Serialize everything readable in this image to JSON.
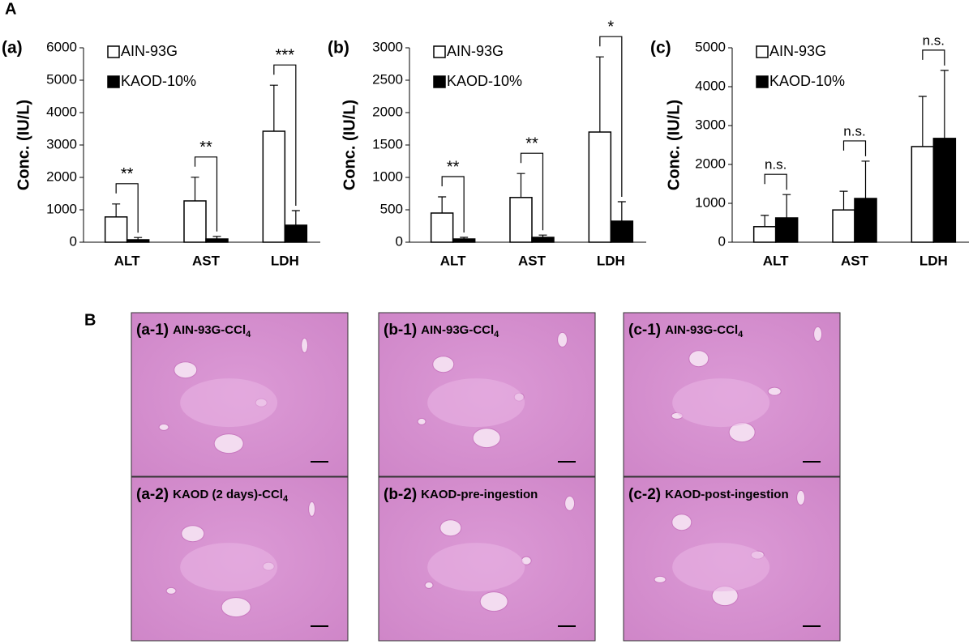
{
  "figure_label_A": "A",
  "figure_label_B": "B",
  "chart_data": [
    {
      "type": "bar",
      "panel": "(a)",
      "ylabel": "Conc. (IU/L)",
      "categories": [
        "ALT",
        "AST",
        "LDH"
      ],
      "series": [
        {
          "name": "AIN-93G",
          "color": "#ffffff",
          "values": [
            780,
            1275,
            3425
          ],
          "errors": [
            400,
            730,
            1420
          ]
        },
        {
          "name": "KAOD-10%",
          "color": "#000000",
          "values": [
            75,
            100,
            525
          ],
          "errors": [
            70,
            80,
            450
          ]
        }
      ],
      "significance": [
        "**",
        "**",
        "***"
      ],
      "edgecolor": "#000000",
      "ylim": [
        0,
        6000
      ],
      "yticks": [
        0,
        1000,
        2000,
        3000,
        4000,
        5000,
        6000
      ]
    },
    {
      "type": "bar",
      "panel": "(b)",
      "ylabel": "Conc. (IU/L)",
      "categories": [
        "ALT",
        "AST",
        "LDH"
      ],
      "series": [
        {
          "name": "AIN-93G",
          "color": "#ffffff",
          "values": [
            450,
            690,
            1700
          ],
          "errors": [
            250,
            370,
            1160
          ]
        },
        {
          "name": "KAOD-10%",
          "color": "#000000",
          "values": [
            50,
            75,
            325
          ],
          "errors": [
            25,
            35,
            300
          ]
        }
      ],
      "significance": [
        "**",
        "**",
        "*"
      ],
      "edgecolor": "#000000",
      "ylim": [
        0,
        3000
      ],
      "yticks": [
        0,
        500,
        1000,
        1500,
        2000,
        2500,
        3000
      ]
    },
    {
      "type": "bar",
      "panel": "(c)",
      "ylabel": "Conc. (IU/L)",
      "categories": [
        "ALT",
        "AST",
        "LDH"
      ],
      "series": [
        {
          "name": "AIN-93G",
          "color": "#ffffff",
          "values": [
            400,
            830,
            2460
          ],
          "errors": [
            290,
            480,
            1290
          ]
        },
        {
          "name": "KAOD-10%",
          "color": "#000000",
          "values": [
            625,
            1125,
            2670
          ],
          "errors": [
            600,
            960,
            1750
          ]
        }
      ],
      "significance": [
        "n.s.",
        "n.s.",
        "n.s."
      ],
      "edgecolor": "#000000",
      "ylim": [
        0,
        5000
      ],
      "yticks": [
        0,
        1000,
        2000,
        3000,
        4000,
        5000
      ]
    }
  ],
  "histology": [
    {
      "label": "(a-1)",
      "text": "AIN-93G-CCl",
      "subscript": "4"
    },
    {
      "label": "(b-1)",
      "text": "AIN-93G-CCl",
      "subscript": "4"
    },
    {
      "label": "(c-1)",
      "text": "AIN-93G-CCl",
      "subscript": "4"
    },
    {
      "label": "(a-2)",
      "text": "KAOD (2 days)-CCl",
      "subscript": "4"
    },
    {
      "label": "(b-2)",
      "text": "KAOD-pre-ingestion"
    },
    {
      "label": "(c-2)",
      "text": "KAOD-post-ingestion"
    }
  ]
}
